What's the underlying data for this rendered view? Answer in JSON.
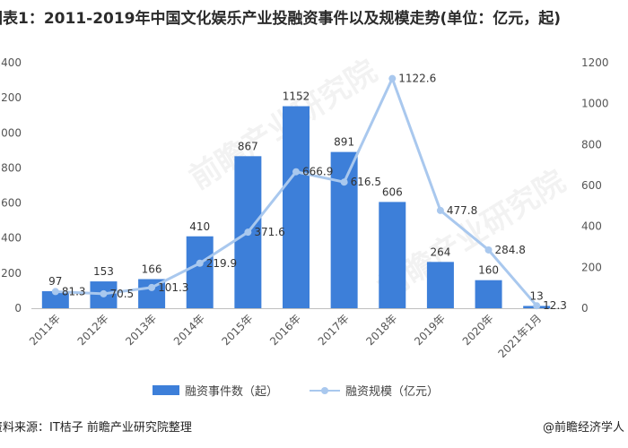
{
  "title": "图表1：2011-2019年中国文化娱乐产业投融资事件以及规模走势(单位：亿元，起)",
  "source": "资料来源：IT桔子 前瞻产业研究院整理",
  "brand": "@前瞻经济学人",
  "watermark": "前瞻产业研究院",
  "colors": {
    "bar": "#3d7fd9",
    "line": "#a9c8ee",
    "text": "#333333",
    "grid": "#e6e6e6"
  },
  "chart_data": {
    "type": "bar",
    "categories": [
      "2011年",
      "2012年",
      "2013年",
      "2014年",
      "2015年",
      "2016年",
      "2017年",
      "2018年",
      "2019年",
      "2020年",
      "2021年1月"
    ],
    "series": [
      {
        "name": "融资事件数（起）",
        "type": "bar",
        "axis": "left",
        "values": [
          97,
          153,
          166,
          410,
          867,
          1152,
          891,
          606,
          264,
          160,
          13
        ]
      },
      {
        "name": "融资规模（亿元）",
        "type": "line",
        "axis": "right",
        "values": [
          81.3,
          70.5,
          101.3,
          219.9,
          371.6,
          666.9,
          616.5,
          1122.6,
          477.8,
          284.8,
          12.3
        ]
      }
    ],
    "ylim_left": [
      0,
      1400
    ],
    "yticks_left": [
      "0",
      "200",
      "400",
      "600",
      "800",
      "1000",
      "1200",
      "1400"
    ],
    "ylim_right": [
      0,
      1200
    ],
    "yticks_right": [
      "0",
      "200",
      "400",
      "600",
      "800",
      "1000",
      "1200"
    ],
    "grid": false,
    "legend": "bottom"
  }
}
